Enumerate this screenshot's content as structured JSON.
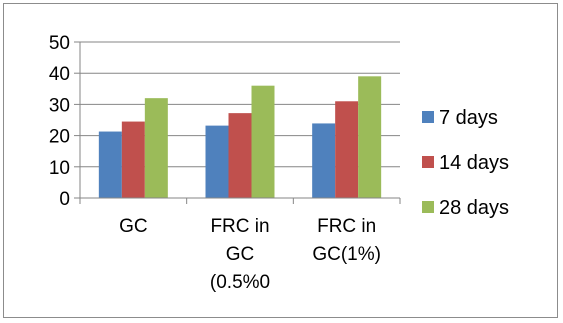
{
  "chart_data": {
    "type": "bar",
    "categories": [
      [
        "GC"
      ],
      [
        "FRC in",
        "GC",
        "(0.5%0"
      ],
      [
        "FRC in",
        "GC(1%)"
      ]
    ],
    "series": [
      {
        "name": "7 days",
        "color": "#4f81bd",
        "values": [
          21.3,
          23.2,
          23.9
        ]
      },
      {
        "name": "14 days",
        "color": "#c0504d",
        "values": [
          24.5,
          27.2,
          31.0
        ]
      },
      {
        "name": "28 days",
        "color": "#9bbb59",
        "values": [
          32.0,
          36.0,
          39.0
        ]
      }
    ],
    "y_ticks": [
      "0",
      "10",
      "20",
      "30",
      "40",
      "50"
    ],
    "ylim": [
      0,
      50
    ],
    "grid": true,
    "legend_position": "right"
  }
}
